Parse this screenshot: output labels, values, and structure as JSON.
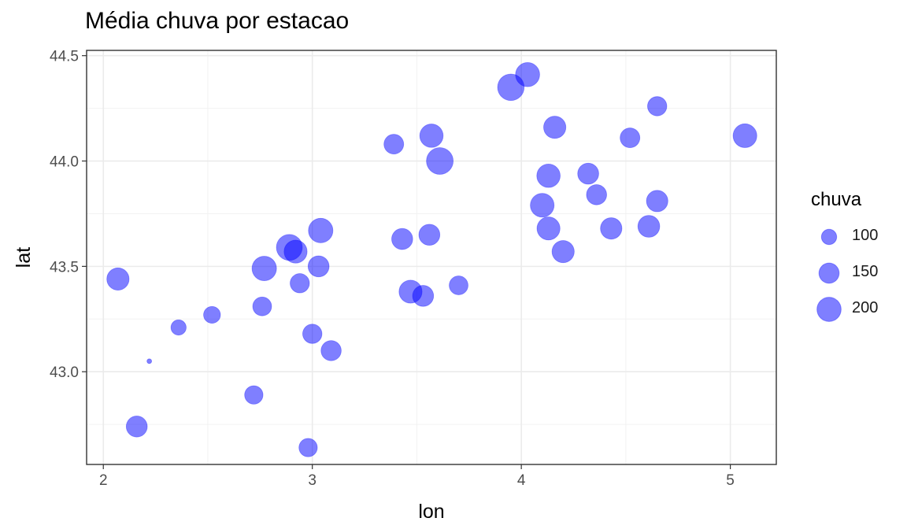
{
  "chart_data": {
    "type": "scatter",
    "title": "Média chuva por estacao",
    "xlabel": "lon",
    "ylabel": "lat",
    "xlim": [
      1.92,
      5.22
    ],
    "ylim": [
      42.56,
      44.525
    ],
    "x_ticks": [
      "2",
      "3",
      "4",
      "5"
    ],
    "y_ticks": [
      "43.0",
      "43.5",
      "44.0",
      "44.5"
    ],
    "grid": true,
    "point_color": "#0000ff",
    "point_opacity": 0.5,
    "size_range": [
      40,
      238
    ],
    "legend": {
      "title": "chuva",
      "position": "right",
      "entries": [
        {
          "label": "100",
          "value": 100
        },
        {
          "label": "150",
          "value": 150
        },
        {
          "label": "200",
          "value": 200
        }
      ]
    },
    "points": [
      {
        "lon": 2.07,
        "lat": 43.44,
        "chuva": 175
      },
      {
        "lon": 2.16,
        "lat": 42.74,
        "chuva": 160
      },
      {
        "lon": 2.22,
        "lat": 43.05,
        "chuva": 40
      },
      {
        "lon": 2.36,
        "lat": 43.21,
        "chuva": 100
      },
      {
        "lon": 2.52,
        "lat": 43.27,
        "chuva": 115
      },
      {
        "lon": 2.72,
        "lat": 42.89,
        "chuva": 130
      },
      {
        "lon": 2.76,
        "lat": 43.31,
        "chuva": 135
      },
      {
        "lon": 2.77,
        "lat": 43.49,
        "chuva": 205
      },
      {
        "lon": 2.89,
        "lat": 43.59,
        "chuva": 225
      },
      {
        "lon": 2.92,
        "lat": 43.57,
        "chuva": 185
      },
      {
        "lon": 2.94,
        "lat": 43.42,
        "chuva": 140
      },
      {
        "lon": 2.98,
        "lat": 42.64,
        "chuva": 130
      },
      {
        "lon": 3.0,
        "lat": 43.18,
        "chuva": 140
      },
      {
        "lon": 3.03,
        "lat": 43.5,
        "chuva": 160
      },
      {
        "lon": 3.04,
        "lat": 43.67,
        "chuva": 205
      },
      {
        "lon": 3.09,
        "lat": 43.1,
        "chuva": 150
      },
      {
        "lon": 3.39,
        "lat": 44.08,
        "chuva": 145
      },
      {
        "lon": 3.43,
        "lat": 43.63,
        "chuva": 160
      },
      {
        "lon": 3.47,
        "lat": 43.38,
        "chuva": 185
      },
      {
        "lon": 3.53,
        "lat": 43.36,
        "chuva": 160
      },
      {
        "lon": 3.56,
        "lat": 43.65,
        "chuva": 160
      },
      {
        "lon": 3.57,
        "lat": 44.12,
        "chuva": 190
      },
      {
        "lon": 3.61,
        "lat": 44.0,
        "chuva": 238
      },
      {
        "lon": 3.7,
        "lat": 43.41,
        "chuva": 135
      },
      {
        "lon": 3.95,
        "lat": 44.35,
        "chuva": 235
      },
      {
        "lon": 4.03,
        "lat": 44.41,
        "chuva": 200
      },
      {
        "lon": 4.1,
        "lat": 43.79,
        "chuva": 195
      },
      {
        "lon": 4.13,
        "lat": 43.68,
        "chuva": 185
      },
      {
        "lon": 4.13,
        "lat": 43.93,
        "chuva": 190
      },
      {
        "lon": 4.16,
        "lat": 44.16,
        "chuva": 175
      },
      {
        "lon": 4.2,
        "lat": 43.57,
        "chuva": 175
      },
      {
        "lon": 4.32,
        "lat": 43.94,
        "chuva": 160
      },
      {
        "lon": 4.36,
        "lat": 43.84,
        "chuva": 150
      },
      {
        "lon": 4.43,
        "lat": 43.68,
        "chuva": 165
      },
      {
        "lon": 4.52,
        "lat": 44.11,
        "chuva": 145
      },
      {
        "lon": 4.61,
        "lat": 43.69,
        "chuva": 170
      },
      {
        "lon": 4.65,
        "lat": 43.81,
        "chuva": 165
      },
      {
        "lon": 4.65,
        "lat": 44.26,
        "chuva": 140
      },
      {
        "lon": 5.07,
        "lat": 44.12,
        "chuva": 195
      }
    ]
  }
}
